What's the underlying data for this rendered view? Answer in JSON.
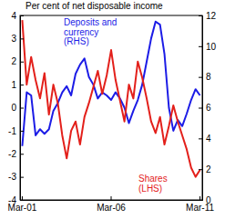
{
  "chart_data": {
    "type": "line",
    "title": "Per cent of net disposable income",
    "categories": [
      "Mar-01",
      null,
      null,
      null,
      null,
      null,
      null,
      null,
      null,
      null,
      null,
      null,
      null,
      null,
      null,
      null,
      null,
      null,
      null,
      null,
      "Mar-06",
      null,
      null,
      null,
      null,
      null,
      null,
      null,
      null,
      null,
      null,
      null,
      null,
      null,
      null,
      null,
      null,
      null,
      null,
      null,
      "Mar-11"
    ],
    "ylim": [
      -4,
      4
    ],
    "yticks": [
      -4,
      -3,
      -2,
      -1,
      0,
      1,
      2,
      3,
      4
    ],
    "y2lim": [
      0,
      12
    ],
    "y2ticks": [
      0,
      2,
      4,
      6,
      8,
      10,
      12
    ],
    "grid": false,
    "series": [
      {
        "name": "Deposits and currency (RHS)",
        "color": "#1c1ce6",
        "axis": "y2",
        "values": [
          3.5,
          7.0,
          6.8,
          4.2,
          4.6,
          4.3,
          4.6,
          5.8,
          6.3,
          7.0,
          7.4,
          6.8,
          8.2,
          8.8,
          9.2,
          8.0,
          7.5,
          6.6,
          7.0,
          6.8,
          6.5,
          7.0,
          6.6,
          6.0,
          5.0,
          5.8,
          6.5,
          7.5,
          9.0,
          10.5,
          11.6,
          11.4,
          9.5,
          6.0,
          4.5,
          5.2,
          4.8,
          5.6,
          6.5,
          7.2,
          6.8
        ]
      },
      {
        "name": "Shares (LHS)",
        "color": "#e3201b",
        "values": [
          3.8,
          1.0,
          2.2,
          1.2,
          0.4,
          1.5,
          -0.3,
          1.0,
          0.2,
          -1.2,
          -2.2,
          -1.0,
          -0.6,
          -1.6,
          -0.4,
          0.2,
          0.9,
          1.6,
          0.6,
          1.4,
          2.5,
          1.2,
          0.3,
          -0.6,
          1.0,
          0.4,
          2.0,
          1.3,
          0.4,
          -0.6,
          -1.1,
          -0.4,
          -1.6,
          -0.8,
          0.1,
          -0.6,
          -1.2,
          -1.8,
          -2.6,
          -3.0,
          -2.7
        ]
      }
    ]
  }
}
